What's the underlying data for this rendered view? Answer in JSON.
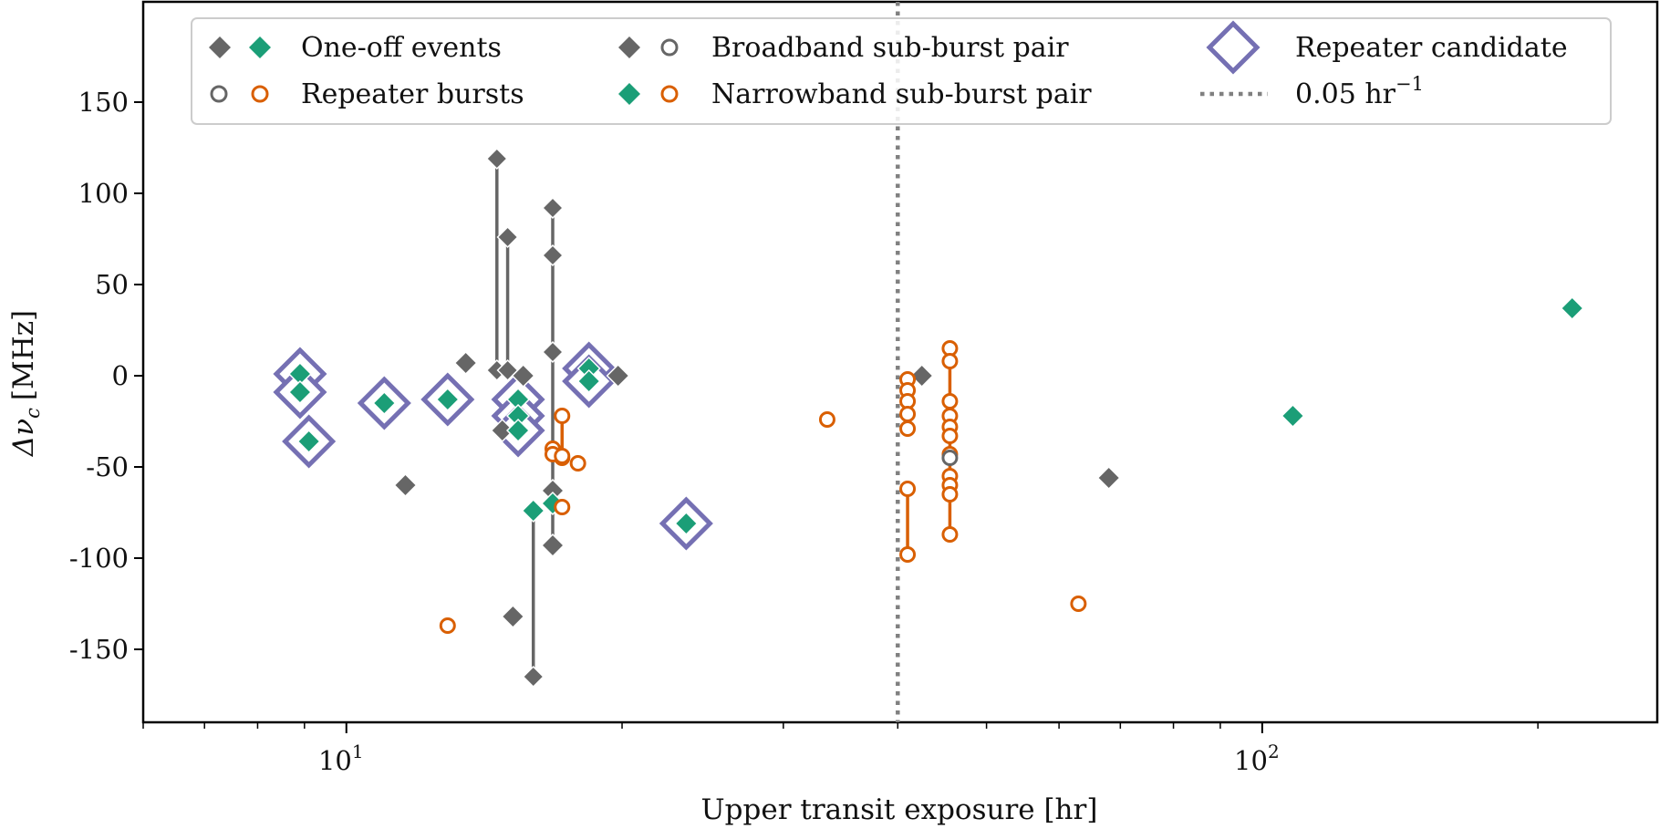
{
  "chart_data": {
    "type": "scatter",
    "title": "",
    "xlabel": "Upper transit exposure [hr]",
    "ylabel_main": "Δν",
    "ylabel_sub": "c",
    "ylabel_unit": "[MHz]",
    "xscale": "log",
    "xlim": [
      6.0,
      270
    ],
    "ylim": [
      -190,
      205
    ],
    "x_ticks": [
      {
        "value": 10,
        "base": "10",
        "exp": "1"
      },
      {
        "value": 100,
        "base": "10",
        "exp": "2"
      }
    ],
    "y_ticks": [
      {
        "value": 150,
        "label": "150"
      },
      {
        "value": 100,
        "label": "100"
      },
      {
        "value": 50,
        "label": "50"
      },
      {
        "value": 0,
        "label": "0"
      },
      {
        "value": -50,
        "label": "-50"
      },
      {
        "value": -100,
        "label": "-100"
      },
      {
        "value": -150,
        "label": "-150"
      }
    ],
    "grid": false,
    "legend_placement": "top",
    "colors": {
      "gray": "#666666",
      "green": "#1b9e77",
      "orange": "#d95f02",
      "purple": "#7570b3",
      "dotted_line": "#808080"
    },
    "legend": {
      "one_off": "One-off events",
      "repeater_bursts": "Repeater bursts",
      "broadband": "Broadband sub-burst pair",
      "narrowband": "Narrowband sub-burst pair",
      "candidate": "Repeater candidate",
      "line_main": "0.05 hr",
      "line_exp": "−1"
    },
    "vline_x": 40,
    "oneoff_gray": [
      [
        11.6,
        -60
      ],
      [
        13.5,
        7
      ],
      [
        14.8,
        -30
      ],
      [
        15.2,
        -132
      ],
      [
        15.6,
        0
      ],
      [
        16.8,
        -63
      ],
      [
        16.8,
        -93
      ],
      [
        19.8,
        0
      ],
      [
        42.5,
        0
      ],
      [
        68,
        -56
      ]
    ],
    "oneoff_green": [
      [
        8.9,
        1
      ],
      [
        8.9,
        -9
      ],
      [
        9.1,
        -36
      ],
      [
        11.0,
        -15
      ],
      [
        12.9,
        -13
      ],
      [
        15.4,
        -13
      ],
      [
        15.4,
        -22
      ],
      [
        15.4,
        -30
      ],
      [
        16.8,
        -70
      ],
      [
        16.0,
        -74
      ],
      [
        18.4,
        4
      ],
      [
        18.4,
        -3
      ],
      [
        23.5,
        -81
      ],
      [
        108,
        -22
      ],
      [
        218,
        37
      ]
    ],
    "candidates": [
      [
        8.9,
        1
      ],
      [
        8.9,
        -9
      ],
      [
        9.1,
        -36
      ],
      [
        11.0,
        -15
      ],
      [
        12.9,
        -13
      ],
      [
        15.4,
        -13
      ],
      [
        15.4,
        -22
      ],
      [
        15.4,
        -30
      ],
      [
        18.4,
        4
      ],
      [
        18.4,
        -3
      ],
      [
        23.5,
        -81
      ]
    ],
    "broadband_pairs": [
      {
        "x": 14.6,
        "y": [
          119,
          3
        ]
      },
      {
        "x": 15.0,
        "y": [
          76,
          3
        ]
      },
      {
        "x": 16.8,
        "y": [
          92,
          66,
          13,
          -63,
          -93
        ]
      },
      {
        "x": 16.0,
        "y": [
          -74,
          -165
        ]
      }
    ],
    "narrowband_pairs": [
      {
        "x": 17.2,
        "y": [
          -22,
          -45
        ]
      },
      {
        "x": 41.0,
        "y": [
          -62,
          -98
        ]
      },
      {
        "x": 41.0,
        "y": [
          -2,
          -8,
          -14,
          -21,
          -29
        ]
      },
      {
        "x": 45.6,
        "y": [
          15,
          8,
          -14,
          -22,
          -28,
          -33,
          -43,
          -55,
          -60,
          -65,
          -87
        ]
      }
    ],
    "repeater_orange": [
      [
        12.9,
        -137
      ],
      [
        16.8,
        -40
      ],
      [
        16.8,
        -43
      ],
      [
        17.2,
        -72
      ],
      [
        17.2,
        -44
      ],
      [
        17.9,
        -48
      ],
      [
        33.5,
        -24
      ],
      [
        63,
        -125
      ]
    ],
    "repeater_gray": [
      [
        45.6,
        -45
      ]
    ]
  }
}
